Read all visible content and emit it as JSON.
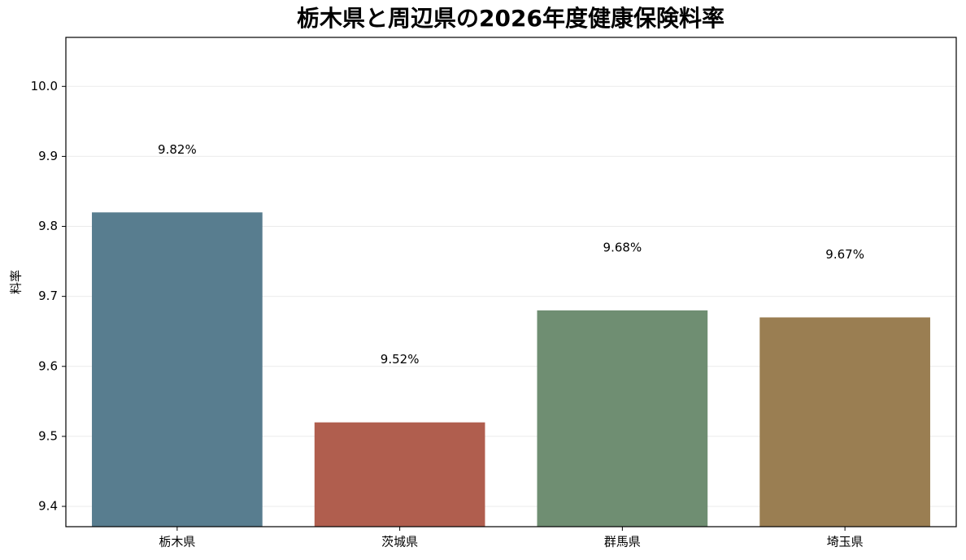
{
  "chart_data": {
    "type": "bar",
    "title": "栃木県と周辺県の2026年度健康保険料率",
    "ylabel": "料率",
    "categories": [
      "栃木県",
      "茨城県",
      "群馬県",
      "埼玉県"
    ],
    "values": [
      9.82,
      9.52,
      9.68,
      9.67
    ],
    "value_labels": [
      "9.82%",
      "9.52%",
      "9.68%",
      "9.67%"
    ],
    "colors": [
      "#587d8f",
      "#b05e4e",
      "#6f8e72",
      "#9a7e52"
    ],
    "ylim": [
      9.371,
      10.07
    ],
    "yticks": [
      9.4,
      9.5,
      9.6,
      9.7,
      9.8,
      9.9,
      {
        "value": 10,
        "label": "10.0"
      }
    ],
    "grid": true
  }
}
